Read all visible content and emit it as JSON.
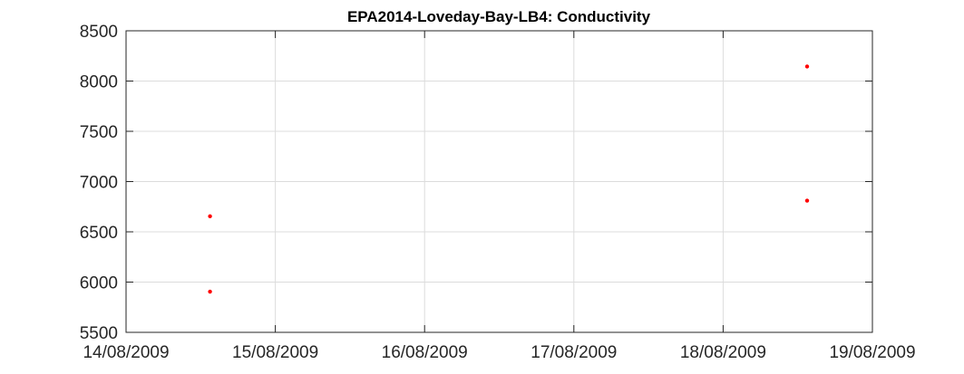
{
  "chart_data": {
    "type": "scatter",
    "title": "EPA2014-Loveday-Bay-LB4: Conductivity",
    "xlabel": "",
    "ylabel": "",
    "x_tick_labels": [
      "14/08/2009",
      "15/08/2009",
      "16/08/2009",
      "17/08/2009",
      "18/08/2009",
      "19/08/2009"
    ],
    "y_tick_labels": [
      "5500",
      "6000",
      "6500",
      "7000",
      "7500",
      "8000",
      "8500"
    ],
    "xlim": [
      "2009-08-14",
      "2009-08-19"
    ],
    "ylim": [
      5500,
      8500
    ],
    "grid": true,
    "marker_color": "#ff0000",
    "series": [
      {
        "points": [
          {
            "x": "2009-08-14T13:30",
            "y": 6655
          },
          {
            "x": "2009-08-14T13:30",
            "y": 5905
          },
          {
            "x": "2009-08-18T13:30",
            "y": 8145
          },
          {
            "x": "2009-08-18T13:30",
            "y": 6810
          }
        ]
      }
    ]
  }
}
